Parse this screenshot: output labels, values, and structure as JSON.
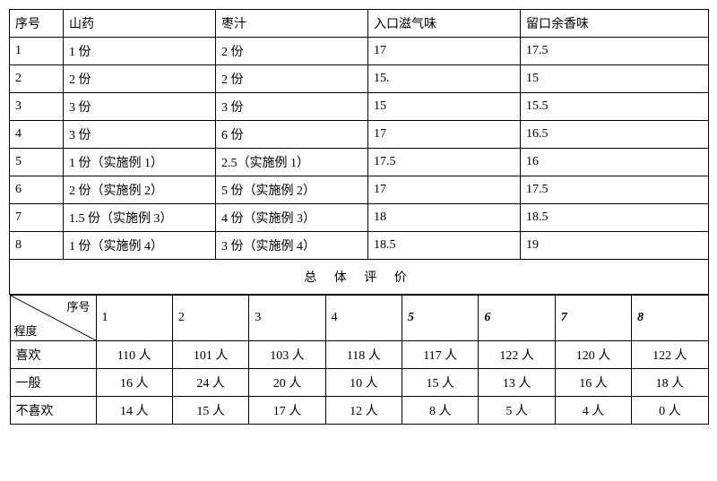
{
  "table1": {
    "headers": [
      "序号",
      "山药",
      "枣汁",
      "入口滋气味",
      "留口余香味"
    ],
    "rows": [
      [
        "1",
        "1 份",
        "2 份",
        "17",
        "17.5"
      ],
      [
        "2",
        "2 份",
        "2 份",
        "15.",
        "15"
      ],
      [
        "3",
        "3 份",
        "3 份",
        "15",
        "15.5"
      ],
      [
        "4",
        "3 份",
        "6 份",
        "17",
        "16.5"
      ],
      [
        "5",
        "1 份（实施例 1）",
        "2.5（实施例 1）",
        "17.5",
        "16"
      ],
      [
        "6",
        "2 份（实施例 2）",
        "5 份（实施例 2）",
        "17",
        "17.5"
      ],
      [
        "7",
        "1.5 份（实施例 3）",
        "4 份（实施例 3）",
        "18",
        " 18.5"
      ],
      [
        "8",
        "1 份（实施例 4）",
        "3 份（实施例 4）",
        "18.5",
        "19"
      ]
    ]
  },
  "eval_title": "总 体 评 价",
  "table2": {
    "diag_top": "序号",
    "diag_bot": "程度",
    "col_ids": [
      "1",
      "2",
      "3",
      "4",
      "5",
      "6",
      "7",
      "8"
    ],
    "rows": [
      {
        "label": "喜欢",
        "vals": [
          "110 人",
          "101 人",
          "103 人",
          "118 人",
          "117 人",
          "122 人",
          "120 人",
          "122 人"
        ]
      },
      {
        "label": "一般",
        "vals": [
          "16 人",
          "24 人",
          "20 人",
          "10 人",
          "15 人",
          "13 人",
          "16 人",
          "18 人"
        ]
      },
      {
        "label": "不喜欢",
        "vals": [
          "14 人",
          "15 人",
          "17 人",
          "12 人",
          "8 人",
          "5 人",
          "4 人",
          "0 人"
        ]
      }
    ]
  }
}
